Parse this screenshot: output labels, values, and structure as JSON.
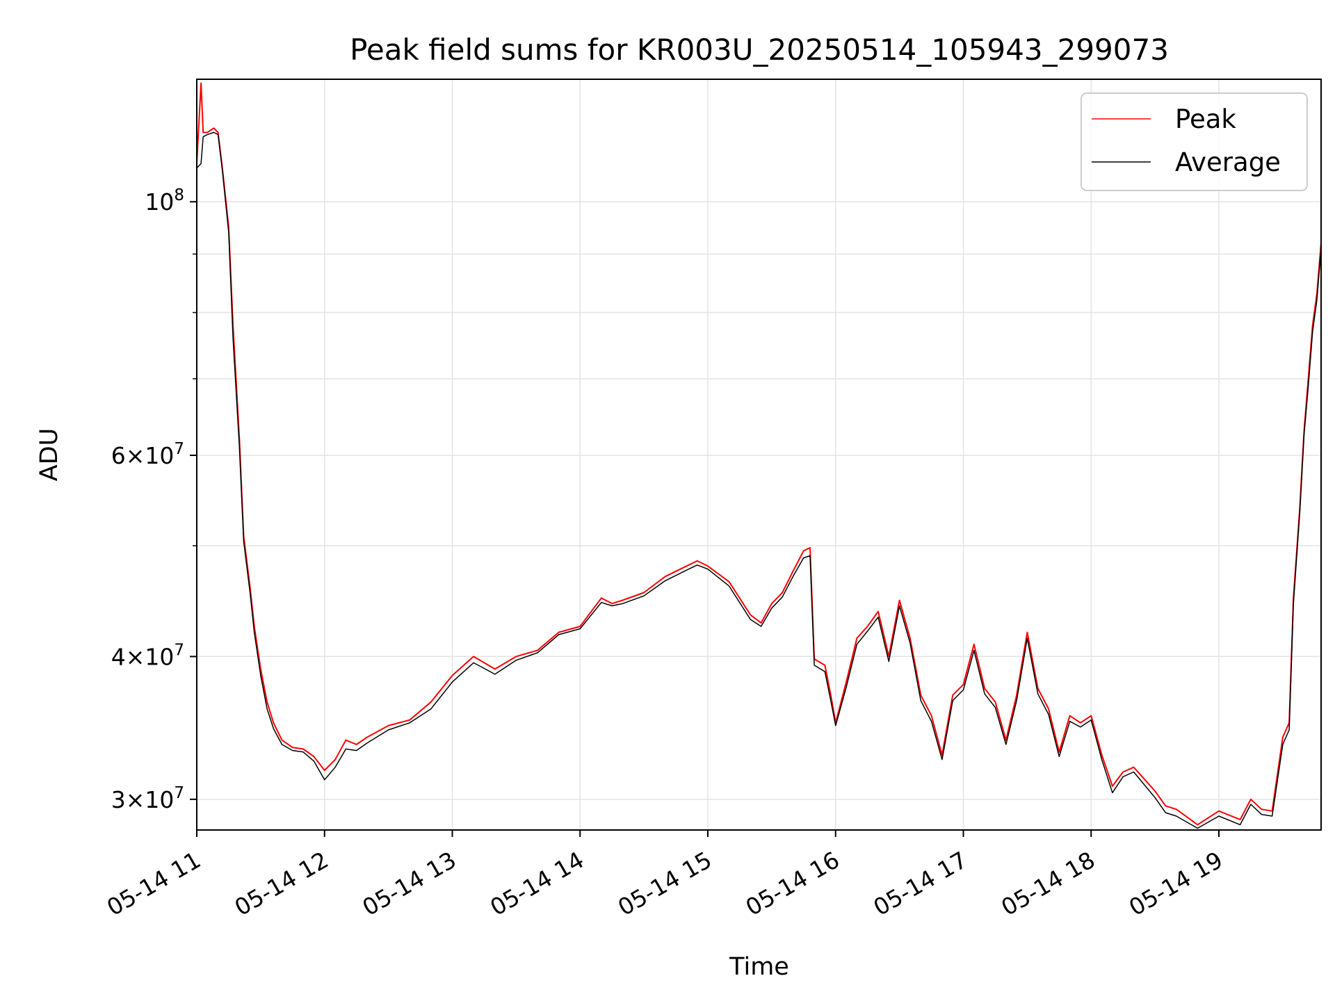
{
  "chart_data": {
    "type": "line",
    "title": "Peak field sums for KR003U_20250514_105943_299073",
    "xlabel": "Time",
    "ylabel": "ADU",
    "x_ticks": [
      "05-14 11",
      "05-14 12",
      "05-14 13",
      "05-14 14",
      "05-14 15",
      "05-14 16",
      "05-14 17",
      "05-14 18",
      "05-14 19"
    ],
    "y_scale": "log",
    "y_ticks": [
      {
        "value": 30000000,
        "mantissa": "3",
        "exp": "7"
      },
      {
        "value": 40000000,
        "mantissa": "4",
        "exp": "7"
      },
      {
        "value": 60000000,
        "mantissa": "6",
        "exp": "7"
      },
      {
        "value": 100000000,
        "mantissa": "",
        "exp": "8"
      }
    ],
    "xlim": [
      "2025-05-14 11:00",
      "2025-05-14 19:48"
    ],
    "ylim": [
      28200000,
      128000000
    ],
    "grid": true,
    "legend_position": "top-right",
    "colors": {
      "peak": "#ff0000",
      "average": "#000000"
    },
    "series": [
      {
        "name": "Peak",
        "x": [
          "11:00",
          "11:02",
          "11:03",
          "11:05",
          "11:08",
          "11:10",
          "11:12",
          "11:15",
          "11:17",
          "11:20",
          "11:22",
          "11:25",
          "11:27",
          "11:30",
          "11:33",
          "11:36",
          "11:40",
          "11:45",
          "11:50",
          "11:55",
          "12:00",
          "12:05",
          "12:10",
          "12:15",
          "12:20",
          "12:30",
          "12:40",
          "12:50",
          "13:00",
          "13:10",
          "13:20",
          "13:30",
          "13:40",
          "13:50",
          "14:00",
          "14:10",
          "14:15",
          "14:20",
          "14:30",
          "14:40",
          "14:50",
          "14:55",
          "15:00",
          "15:10",
          "15:20",
          "15:25",
          "15:30",
          "15:35",
          "15:40",
          "15:45",
          "15:48",
          "15:50",
          "15:55",
          "15:58",
          "16:00",
          "16:05",
          "16:10",
          "16:15",
          "16:20",
          "16:25",
          "16:30",
          "16:35",
          "16:40",
          "16:45",
          "16:50",
          "16:55",
          "17:00",
          "17:05",
          "17:10",
          "17:15",
          "17:20",
          "17:25",
          "17:30",
          "17:35",
          "17:40",
          "17:45",
          "17:50",
          "17:55",
          "18:00",
          "18:05",
          "18:10",
          "18:15",
          "18:20",
          "18:30",
          "18:35",
          "18:40",
          "18:50",
          "19:00",
          "19:10",
          "19:15",
          "19:20",
          "19:25",
          "19:30",
          "19:33",
          "19:35",
          "19:38",
          "19:40",
          "19:42",
          "19:44",
          "19:46",
          "19:48"
        ],
        "values": [
          108000000,
          127000000,
          115000000,
          115000000,
          116000000,
          115000000,
          107000000,
          95000000,
          78000000,
          62000000,
          51000000,
          46000000,
          42500000,
          39000000,
          36500000,
          35000000,
          33800000,
          33300000,
          33200000,
          32700000,
          31800000,
          32500000,
          33800000,
          33500000,
          34000000,
          34800000,
          35200000,
          36500000,
          38500000,
          40000000,
          39000000,
          40000000,
          40500000,
          42000000,
          42500000,
          45000000,
          44500000,
          44800000,
          45500000,
          47000000,
          48000000,
          48500000,
          48000000,
          46500000,
          43500000,
          42800000,
          44500000,
          45500000,
          47500000,
          49500000,
          49800000,
          39800000,
          39300000,
          36800000,
          35000000,
          38000000,
          41500000,
          42500000,
          43800000,
          40000000,
          44800000,
          41500000,
          37000000,
          35500000,
          32800000,
          37000000,
          37800000,
          41000000,
          37500000,
          36500000,
          33800000,
          37000000,
          42000000,
          37500000,
          36000000,
          33000000,
          35500000,
          35000000,
          35500000,
          32800000,
          30800000,
          31700000,
          32000000,
          30500000,
          29600000,
          29400000,
          28500000,
          29300000,
          28800000,
          30000000,
          29400000,
          29300000,
          34000000,
          35000000,
          45000000,
          54000000,
          63000000,
          70000000,
          78000000,
          83000000,
          92000000
        ]
      },
      {
        "name": "Average",
        "x": [
          "11:00",
          "11:02",
          "11:03",
          "11:05",
          "11:08",
          "11:10",
          "11:12",
          "11:15",
          "11:17",
          "11:20",
          "11:22",
          "11:25",
          "11:27",
          "11:30",
          "11:33",
          "11:36",
          "11:40",
          "11:45",
          "11:50",
          "11:55",
          "12:00",
          "12:05",
          "12:10",
          "12:15",
          "12:20",
          "12:30",
          "12:40",
          "12:50",
          "13:00",
          "13:10",
          "13:20",
          "13:30",
          "13:40",
          "13:50",
          "14:00",
          "14:10",
          "14:15",
          "14:20",
          "14:30",
          "14:40",
          "14:50",
          "14:55",
          "15:00",
          "15:10",
          "15:20",
          "15:25",
          "15:30",
          "15:35",
          "15:40",
          "15:45",
          "15:48",
          "15:50",
          "15:55",
          "15:58",
          "16:00",
          "16:05",
          "16:10",
          "16:15",
          "16:20",
          "16:25",
          "16:30",
          "16:35",
          "16:40",
          "16:45",
          "16:50",
          "16:55",
          "17:00",
          "17:05",
          "17:10",
          "17:15",
          "17:20",
          "17:25",
          "17:30",
          "17:35",
          "17:40",
          "17:45",
          "17:50",
          "17:55",
          "18:00",
          "18:05",
          "18:10",
          "18:15",
          "18:20",
          "18:30",
          "18:35",
          "18:40",
          "18:50",
          "19:00",
          "19:10",
          "19:15",
          "19:20",
          "19:25",
          "19:30",
          "19:33",
          "19:35",
          "19:38",
          "19:40",
          "19:42",
          "19:44",
          "19:46",
          "19:48"
        ],
        "values": [
          107000000,
          108000000,
          114000000,
          114500000,
          115000000,
          114500000,
          106500000,
          94000000,
          76000000,
          61000000,
          50500000,
          45500000,
          42000000,
          38500000,
          36000000,
          34600000,
          33500000,
          33100000,
          33000000,
          32400000,
          31200000,
          32000000,
          33200000,
          33100000,
          33600000,
          34500000,
          35000000,
          36000000,
          38000000,
          39500000,
          38600000,
          39700000,
          40300000,
          41800000,
          42300000,
          44600000,
          44300000,
          44500000,
          45200000,
          46600000,
          47600000,
          48100000,
          47700000,
          46100000,
          43100000,
          42500000,
          44100000,
          45100000,
          47000000,
          48800000,
          49000000,
          39300000,
          38800000,
          36400000,
          34800000,
          37600000,
          41000000,
          42100000,
          43300000,
          39600000,
          44300000,
          41100000,
          36600000,
          35100000,
          32500000,
          36600000,
          37400000,
          40500000,
          37100000,
          36100000,
          33500000,
          36600000,
          41500000,
          37100000,
          35600000,
          32700000,
          35100000,
          34700000,
          35200000,
          32500000,
          30400000,
          31400000,
          31700000,
          30100000,
          29200000,
          29000000,
          28300000,
          29000000,
          28500000,
          29700000,
          29100000,
          29000000,
          33500000,
          34500000,
          44500000,
          53500000,
          62500000,
          69000000,
          77000000,
          82000000,
          91000000
        ]
      }
    ]
  }
}
